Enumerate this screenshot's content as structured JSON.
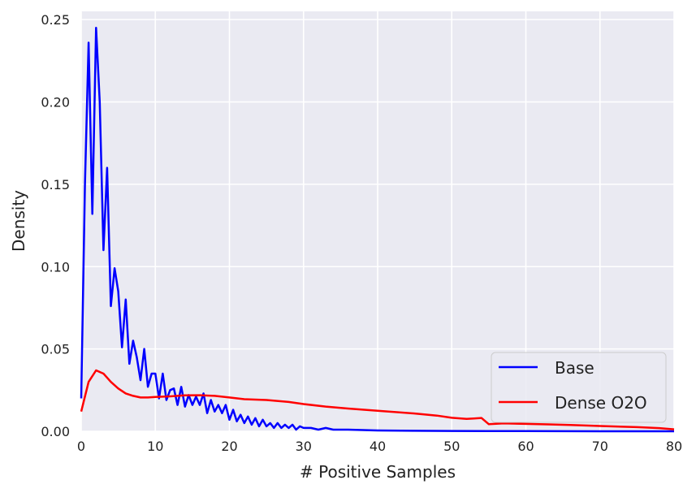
{
  "chart_data": {
    "type": "line",
    "title": "",
    "xlabel": "# Positive Samples",
    "ylabel": "Density",
    "xlim": [
      0,
      80
    ],
    "ylim": [
      0,
      0.255
    ],
    "xticks": [
      0,
      10,
      20,
      30,
      40,
      50,
      60,
      70,
      80
    ],
    "xtick_labels": [
      "0",
      "10",
      "20",
      "30",
      "40",
      "50",
      "60",
      "70",
      "80"
    ],
    "yticks": [
      0,
      0.05,
      0.1,
      0.15,
      0.2,
      0.25
    ],
    "ytick_labels": [
      "0.00",
      "0.05",
      "0.10",
      "0.15",
      "0.20",
      "0.25"
    ],
    "grid": true,
    "legend_position": "bottom-right",
    "background": "#eaeaf2",
    "series": [
      {
        "name": "Base",
        "color": "#0000ff",
        "x": [
          0,
          0.5,
          1.0,
          1.5,
          2.0,
          2.5,
          3.0,
          3.5,
          4.0,
          4.5,
          5.0,
          5.5,
          6.0,
          6.5,
          7.0,
          7.5,
          8.0,
          8.5,
          9.0,
          9.5,
          10.0,
          10.5,
          11.0,
          11.5,
          12.0,
          12.5,
          13.0,
          13.5,
          14.0,
          14.5,
          15.0,
          15.5,
          16.0,
          16.5,
          17.0,
          17.5,
          18.0,
          18.5,
          19.0,
          19.5,
          20.0,
          20.5,
          21.0,
          21.5,
          22.0,
          22.5,
          23.0,
          23.5,
          24.0,
          24.5,
          25.0,
          25.5,
          26.0,
          26.5,
          27.0,
          27.5,
          28.0,
          28.5,
          29.0,
          29.5,
          30.0,
          31.0,
          32.0,
          33.0,
          34.0,
          36.0,
          40.0,
          45.0,
          50.0,
          55.0,
          60.0,
          70.0,
          80.0
        ],
        "y": [
          0.02,
          0.15,
          0.236,
          0.132,
          0.245,
          0.2,
          0.11,
          0.16,
          0.076,
          0.099,
          0.085,
          0.051,
          0.08,
          0.041,
          0.055,
          0.045,
          0.031,
          0.05,
          0.027,
          0.035,
          0.035,
          0.02,
          0.035,
          0.019,
          0.025,
          0.026,
          0.016,
          0.027,
          0.015,
          0.022,
          0.016,
          0.021,
          0.016,
          0.023,
          0.011,
          0.019,
          0.012,
          0.016,
          0.011,
          0.016,
          0.007,
          0.013,
          0.006,
          0.01,
          0.005,
          0.009,
          0.004,
          0.008,
          0.003,
          0.007,
          0.003,
          0.005,
          0.002,
          0.005,
          0.002,
          0.004,
          0.002,
          0.004,
          0.001,
          0.003,
          0.002,
          0.002,
          0.001,
          0.002,
          0.001,
          0.001,
          0.0005,
          0.0003,
          0.0002,
          0.0001,
          0.0001,
          0,
          0
        ]
      },
      {
        "name": "Dense O2O",
        "color": "#ff0000",
        "x": [
          0,
          1,
          2,
          3,
          4,
          5,
          6,
          7,
          8,
          9,
          10,
          12,
          14,
          16,
          18,
          20,
          22,
          25,
          28,
          30,
          33,
          36,
          40,
          45,
          48,
          50,
          52,
          53,
          54,
          55,
          57,
          60,
          63,
          66,
          70,
          75,
          78,
          80
        ],
        "y": [
          0.012,
          0.03,
          0.037,
          0.035,
          0.03,
          0.026,
          0.023,
          0.0215,
          0.0205,
          0.0205,
          0.0208,
          0.0212,
          0.0218,
          0.0219,
          0.0215,
          0.0205,
          0.0195,
          0.019,
          0.0178,
          0.0165,
          0.015,
          0.0138,
          0.0125,
          0.0108,
          0.0095,
          0.0082,
          0.0075,
          0.0078,
          0.0081,
          0.0043,
          0.0048,
          0.0045,
          0.0042,
          0.0038,
          0.0032,
          0.0025,
          0.0019,
          0.0012
        ]
      }
    ]
  }
}
